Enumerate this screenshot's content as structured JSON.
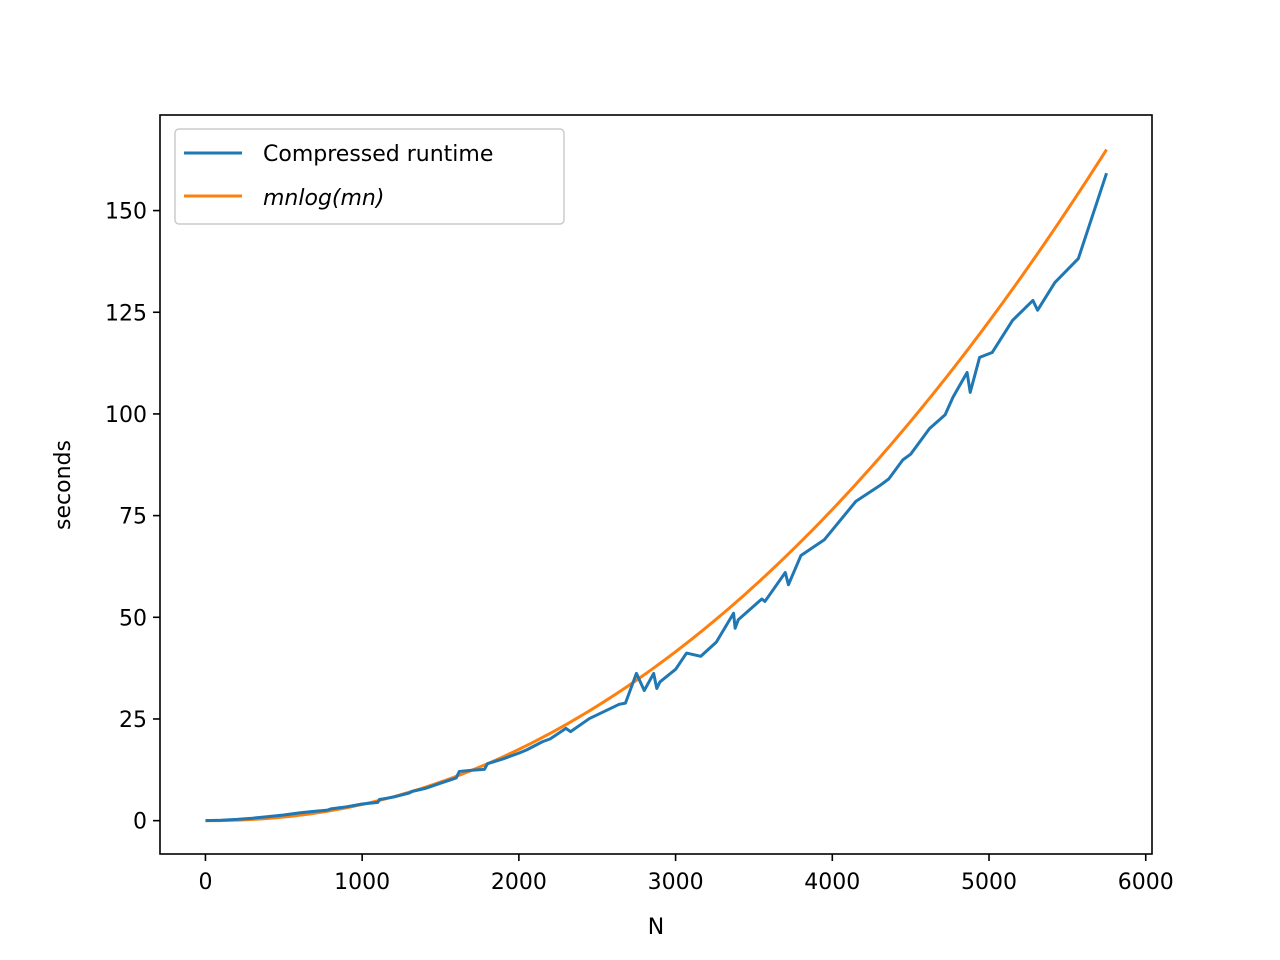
{
  "chart_data": {
    "type": "line",
    "xlabel": "N",
    "ylabel": "seconds",
    "xlim": [
      -290,
      6040
    ],
    "ylim": [
      -8.2,
      173.5
    ],
    "xticks": [
      0,
      1000,
      2000,
      3000,
      4000,
      5000,
      6000
    ],
    "yticks": [
      0,
      25,
      50,
      75,
      100,
      125,
      150
    ],
    "xtick_labels": [
      "0",
      "1000",
      "2000",
      "3000",
      "4000",
      "5000",
      "6000"
    ],
    "ytick_labels": [
      "0",
      "25",
      "50",
      "75",
      "100",
      "125",
      "150"
    ],
    "grid": false,
    "legend_position": "upper-left",
    "series": [
      {
        "name": "Compressed runtime",
        "color": "#1f77b4",
        "x": [
          0,
          100,
          200,
          300,
          400,
          500,
          600,
          700,
          780,
          800,
          900,
          1000,
          1100,
          1110,
          1200,
          1300,
          1320,
          1400,
          1500,
          1600,
          1620,
          1700,
          1780,
          1800,
          1900,
          2000,
          2050,
          2150,
          2200,
          2300,
          2330,
          2450,
          2640,
          2680,
          2750,
          2800,
          2860,
          2880,
          2900,
          3000,
          3070,
          3160,
          3260,
          3370,
          3380,
          3400,
          3550,
          3570,
          3700,
          3720,
          3800,
          3950,
          4150,
          4300,
          4360,
          4450,
          4500,
          4620,
          4720,
          4770,
          4860,
          4880,
          4940,
          5020,
          5150,
          5280,
          5310,
          5420,
          5570,
          5750
        ],
        "y": [
          0,
          0.1,
          0.3,
          0.6,
          1.0,
          1.4,
          1.9,
          2.3,
          2.6,
          2.9,
          3.4,
          4.1,
          4.5,
          5.2,
          5.8,
          6.8,
          7.2,
          7.9,
          9.2,
          10.5,
          12.1,
          12.4,
          12.6,
          14.0,
          15.2,
          16.6,
          17.4,
          19.4,
          20.1,
          22.7,
          21.9,
          25.1,
          28.6,
          28.9,
          36.2,
          32.0,
          36.2,
          32.5,
          34.1,
          37.2,
          41.2,
          40.4,
          43.9,
          51.0,
          47.3,
          49.4,
          54.5,
          53.9,
          61.0,
          58.0,
          65.2,
          69.1,
          78.5,
          82.3,
          84.0,
          88.7,
          90.1,
          96.4,
          99.8,
          104.1,
          110.2,
          105.3,
          113.9,
          115.1,
          123.0,
          127.9,
          125.5,
          132.3,
          138.2,
          159.2
        ]
      },
      {
        "name": "mnlog(mn)",
        "color": "#ff7f0e",
        "function": "c*N^2*log(N^2)",
        "x_range": [
          0,
          5750
        ],
        "y_end": 165.0
      }
    ]
  }
}
